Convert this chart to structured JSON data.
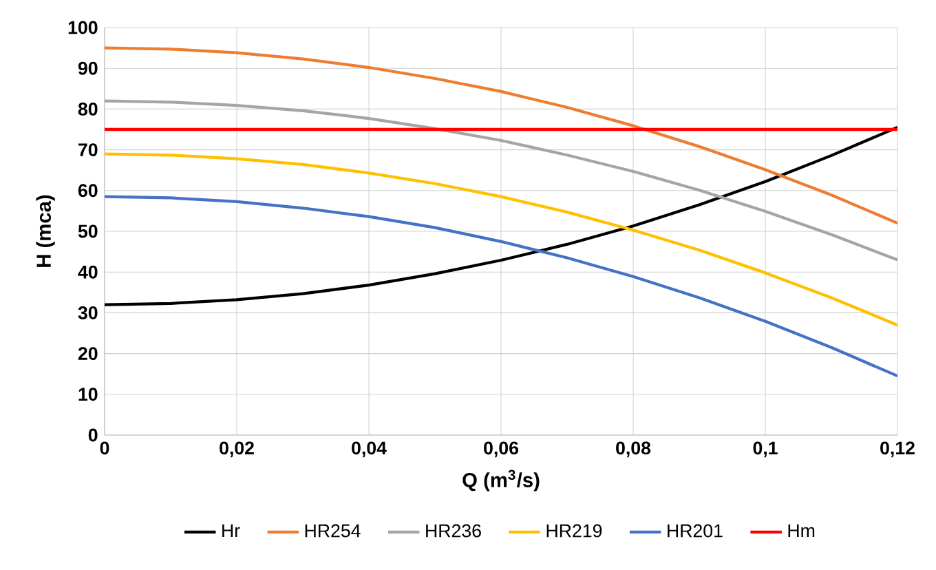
{
  "chart_data": {
    "type": "line",
    "xlabel": "Q (m$^{3}$/s)",
    "ylabel": "H (mca)",
    "x": [
      0,
      0.01,
      0.02,
      0.03,
      0.04,
      0.05,
      0.06,
      0.07,
      0.08,
      0.09,
      0.1,
      0.11,
      0.12
    ],
    "series": [
      {
        "name": "Hr",
        "color": "#000000",
        "values": [
          32,
          32.3,
          33.2,
          34.7,
          36.8,
          39.6,
          42.9,
          46.8,
          51.3,
          56.5,
          62.2,
          68.6,
          75.5
        ]
      },
      {
        "name": "HR254",
        "color": "#ed7d31",
        "values": [
          95,
          94.7,
          93.8,
          92.3,
          90.2,
          87.5,
          84.3,
          80.4,
          75.9,
          70.8,
          65.1,
          58.9,
          52
        ]
      },
      {
        "name": "HR236",
        "color": "#a5a5a5",
        "values": [
          82,
          81.7,
          80.9,
          79.6,
          77.7,
          75.2,
          72.3,
          68.7,
          64.7,
          60.1,
          54.9,
          49.2,
          43
        ]
      },
      {
        "name": "HR219",
        "color": "#ffc000",
        "values": [
          69,
          68.7,
          67.8,
          66.4,
          64.3,
          61.7,
          58.5,
          54.7,
          50.3,
          45.4,
          39.8,
          33.7,
          27
        ]
      },
      {
        "name": "HR201",
        "color": "#4472c4",
        "values": [
          58.5,
          58.2,
          57.3,
          55.7,
          53.6,
          50.9,
          47.5,
          43.5,
          38.9,
          33.7,
          27.9,
          21.5,
          14.5
        ]
      },
      {
        "name": "Hm",
        "color": "#ff0000",
        "x": [
          0,
          0.12
        ],
        "values": [
          75,
          75
        ]
      }
    ],
    "xlim": [
      0,
      0.12
    ],
    "xticks": [
      0,
      {
        "value": 0.02,
        "label": "0,02"
      },
      {
        "value": 0.04,
        "label": "0,04"
      },
      {
        "value": 0.06,
        "label": "0,06"
      },
      {
        "value": 0.08,
        "label": "0,08"
      },
      {
        "value": 0.1,
        "label": "0,1"
      },
      {
        "value": 0.12,
        "label": "0,12"
      }
    ],
    "ylim": [
      0,
      100
    ],
    "yticks": [
      0,
      10,
      20,
      30,
      40,
      50,
      60,
      70,
      80,
      90,
      100
    ],
    "grid": true,
    "legend": "bottom",
    "marker": "none",
    "line_style": "solid"
  }
}
